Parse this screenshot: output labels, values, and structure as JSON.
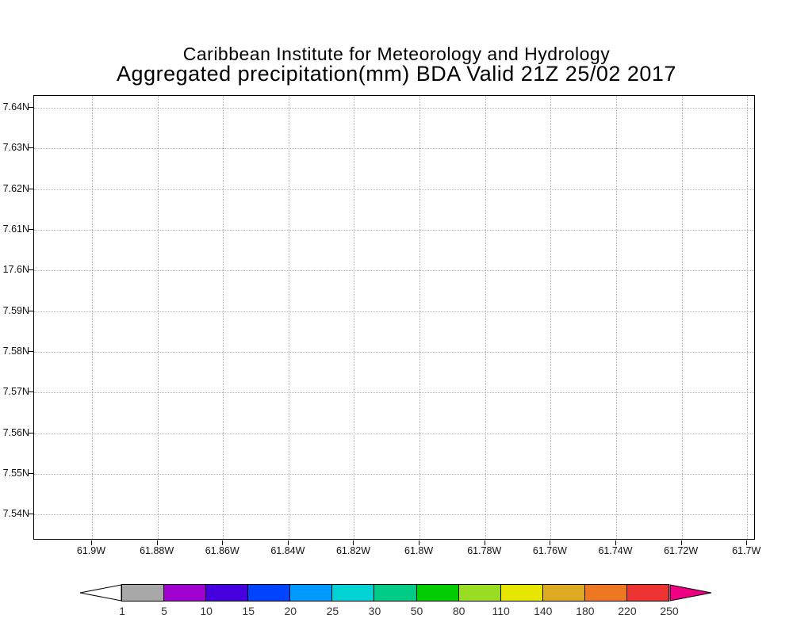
{
  "header": {
    "title_line1": "Caribbean Institute for Meteorology and Hydrology",
    "title_line2": "Aggregated precipitation(mm) BDA Valid 21Z 25/02 2017"
  },
  "chart_data": {
    "type": "heatmap",
    "title": "Aggregated precipitation(mm) BDA Valid 21Z 25/02 2017",
    "subtitle": "Caribbean Institute for Meteorology and Hydrology",
    "grid": true,
    "values": [],
    "x_axis": {
      "tick_labels": [
        "61.9W",
        "61.88W",
        "61.86W",
        "61.84W",
        "61.82W",
        "61.8W",
        "61.78W",
        "61.76W",
        "61.74W",
        "61.72W",
        "61.7W"
      ]
    },
    "y_axis": {
      "tick_labels": [
        "7.64N",
        "7.63N",
        "7.62N",
        "7.61N",
        "17.6N",
        "7.59N",
        "7.58N",
        "7.57N",
        "7.56N",
        "7.55N",
        "7.54N"
      ]
    },
    "colorbar": {
      "labels": [
        "1",
        "5",
        "10",
        "15",
        "20",
        "25",
        "30",
        "50",
        "80",
        "110",
        "140",
        "180",
        "220",
        "250"
      ],
      "segment_colors": [
        "#a8a8a8",
        "#a000d0",
        "#4400dd",
        "#0044ff",
        "#0099ff",
        "#00d3d3",
        "#00cc88",
        "#00cc00",
        "#99dd22",
        "#e6e600",
        "#ddaa22",
        "#ee7722",
        "#ee3333"
      ],
      "left_arrow_color": "#ffffff",
      "right_arrow_color": "#ee0082",
      "outline_color": "#000000"
    }
  }
}
